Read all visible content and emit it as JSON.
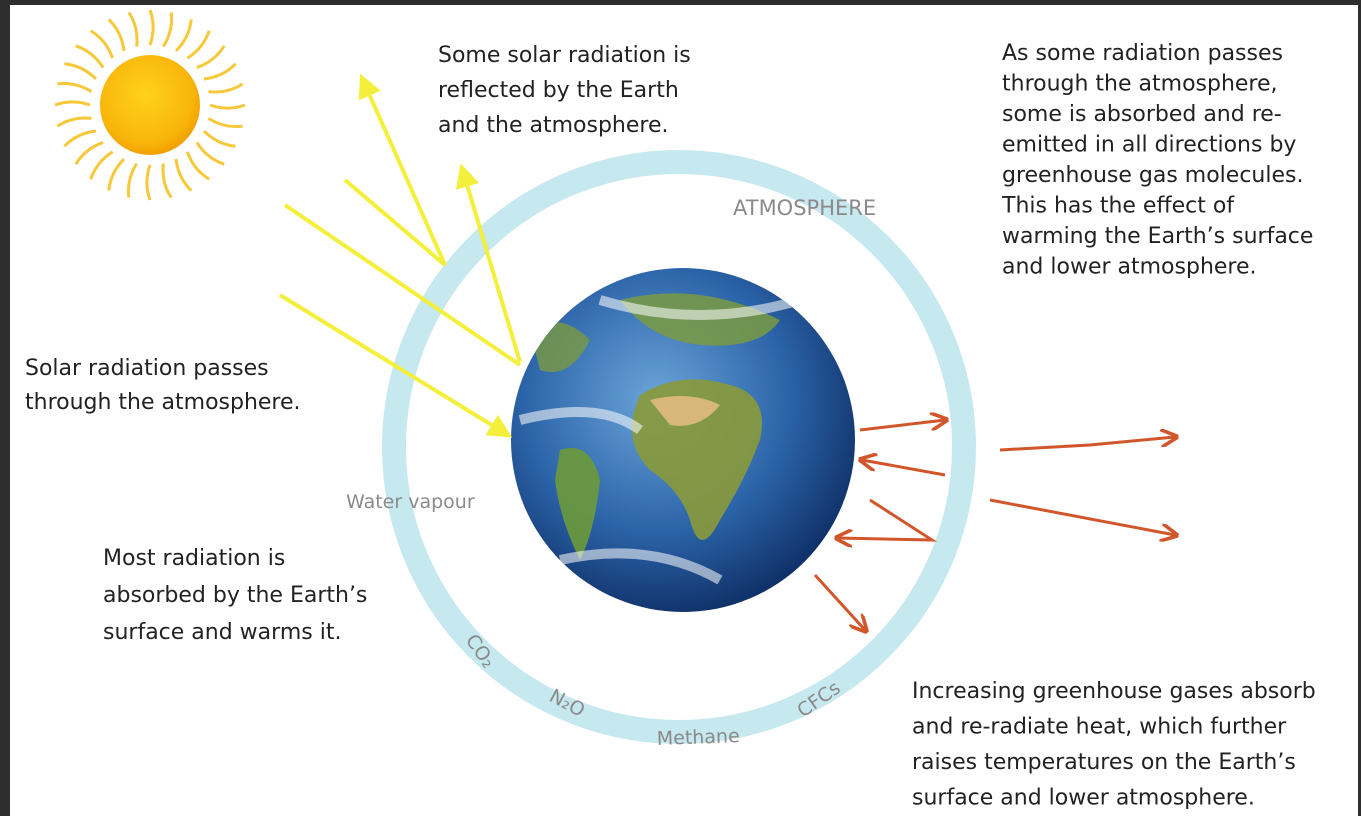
{
  "captions": {
    "reflected": [
      "Some solar radiation is",
      "reflected by the Earth",
      "and the atmosphere."
    ],
    "reemitted": [
      "As some radiation passes",
      "through the atmosphere,",
      "some is absorbed and re-",
      "emitted in all directions by",
      "greenhouse gas molecules.",
      "This has the effect of",
      "warming the Earth’s surface",
      "and lower atmosphere."
    ],
    "passes": [
      "Solar radiation passes",
      "through the atmosphere."
    ],
    "absorbed": [
      "Most radiation is",
      "absorbed by the Earth’s",
      "surface and warms it."
    ],
    "increasing": [
      "Increasing greenhouse gases absorb",
      "and re-radiate heat, which further",
      "raises temperatures on the Earth’s",
      "surface and lower atmosphere."
    ]
  },
  "atmosphere_label": "ATMOSPHERE",
  "gases": {
    "water": "Water vapour",
    "co2": "CO₂",
    "n2o": "N₂O",
    "methane": "Methane",
    "cfcs": "CFCs"
  }
}
